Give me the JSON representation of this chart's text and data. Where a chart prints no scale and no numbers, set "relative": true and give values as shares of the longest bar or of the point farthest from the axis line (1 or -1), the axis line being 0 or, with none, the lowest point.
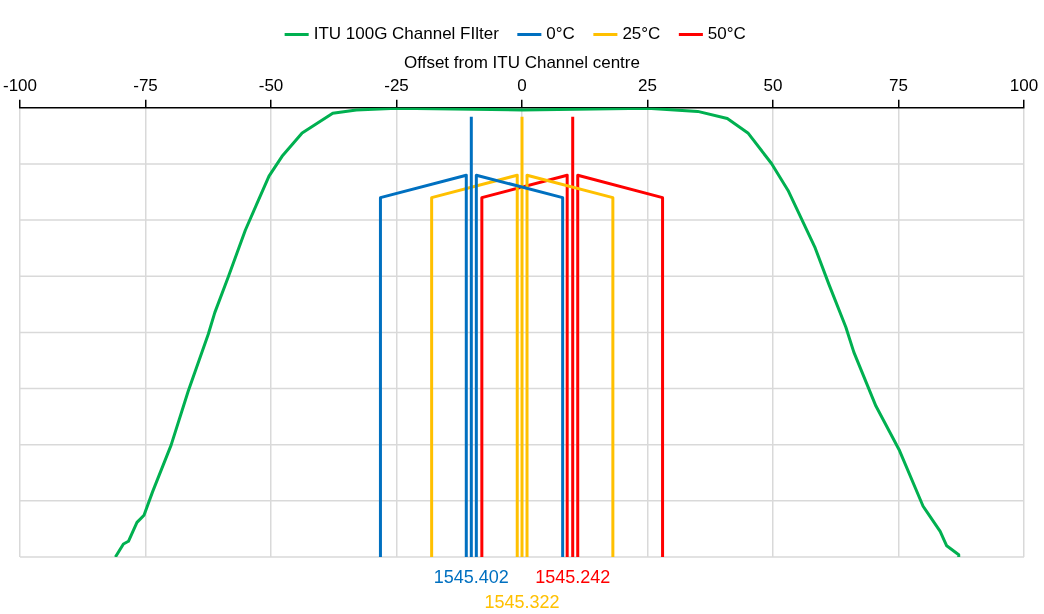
{
  "chart_data": {
    "type": "line",
    "xlabel": "Offset from ITU Channel centre",
    "relative": true,
    "xlim": [
      -100,
      100
    ],
    "xticks": [
      -100,
      -75,
      -50,
      -25,
      0,
      25,
      50,
      75,
      100
    ],
    "grid": true,
    "legend": "top",
    "marker": "none",
    "line_style": "solid",
    "series": [
      {
        "name": "ITU 100G Channel FIlter",
        "color": "#00b050",
        "x": [
          -81.0,
          -79.4,
          -78.4,
          -76.7,
          -75.3,
          -73.6,
          -69.9,
          -66.5,
          -62.5,
          -61.2,
          -58.5,
          -55.1,
          -50.4,
          -47.8,
          -43.8,
          -37.7,
          -33,
          -25,
          0,
          25,
          35,
          40.9,
          45.0,
          49.7,
          53.0,
          58.4,
          61.1,
          64.5,
          66.1,
          70.5,
          75.2,
          79.9,
          83.3,
          84.6,
          87.0,
          87.0
        ],
        "values": [
          -1,
          -0.971,
          -0.965,
          -0.923,
          -0.907,
          -0.855,
          -0.751,
          -0.631,
          -0.504,
          -0.456,
          -0.376,
          -0.272,
          -0.152,
          -0.108,
          -0.056,
          -0.012,
          -0.005,
          -0.001,
          -0.005,
          -0.001,
          -0.008,
          -0.024,
          -0.056,
          -0.124,
          -0.184,
          -0.312,
          -0.392,
          -0.488,
          -0.544,
          -0.664,
          -0.763,
          -0.887,
          -0.943,
          -0.975,
          -0.995,
          -1
        ]
      },
      {
        "name": "0°C",
        "color": "#0070c0",
        "x": [
          -28.2,
          -28.2,
          -11.1,
          -11.1,
          -10.6,
          -10.1,
          -10.1,
          -9.6,
          -9.1,
          -9.1,
          8.1,
          8.1
        ],
        "values": [
          -1,
          -0.2,
          -0.15,
          -1,
          null,
          -1,
          -0.02,
          null,
          -1,
          -0.15,
          -0.2,
          -1
        ]
      },
      {
        "name": "25°C",
        "color": "#ffc000",
        "x": [
          -18.0,
          -18.0,
          -0.95,
          -0.95,
          -0.5,
          0,
          0,
          0.5,
          1.0,
          1.0,
          18.1,
          18.1
        ],
        "values": [
          -1,
          -0.2,
          -0.15,
          -1,
          null,
          -1,
          -0.02,
          null,
          -1,
          -0.15,
          -0.2,
          -1
        ]
      },
      {
        "name": "50°C",
        "color": "#ff0000",
        "x": [
          -8.0,
          -8.0,
          9.0,
          9.0,
          9.5,
          10.1,
          10.1,
          10.6,
          11.1,
          11.1,
          28.0,
          28.0
        ],
        "values": [
          -1,
          -0.2,
          -0.15,
          -1,
          null,
          -1,
          -0.02,
          null,
          -1,
          -0.15,
          -0.2,
          -1
        ]
      }
    ],
    "annotations": [
      "1545.402",
      "1545.322",
      "1545.242"
    ]
  }
}
